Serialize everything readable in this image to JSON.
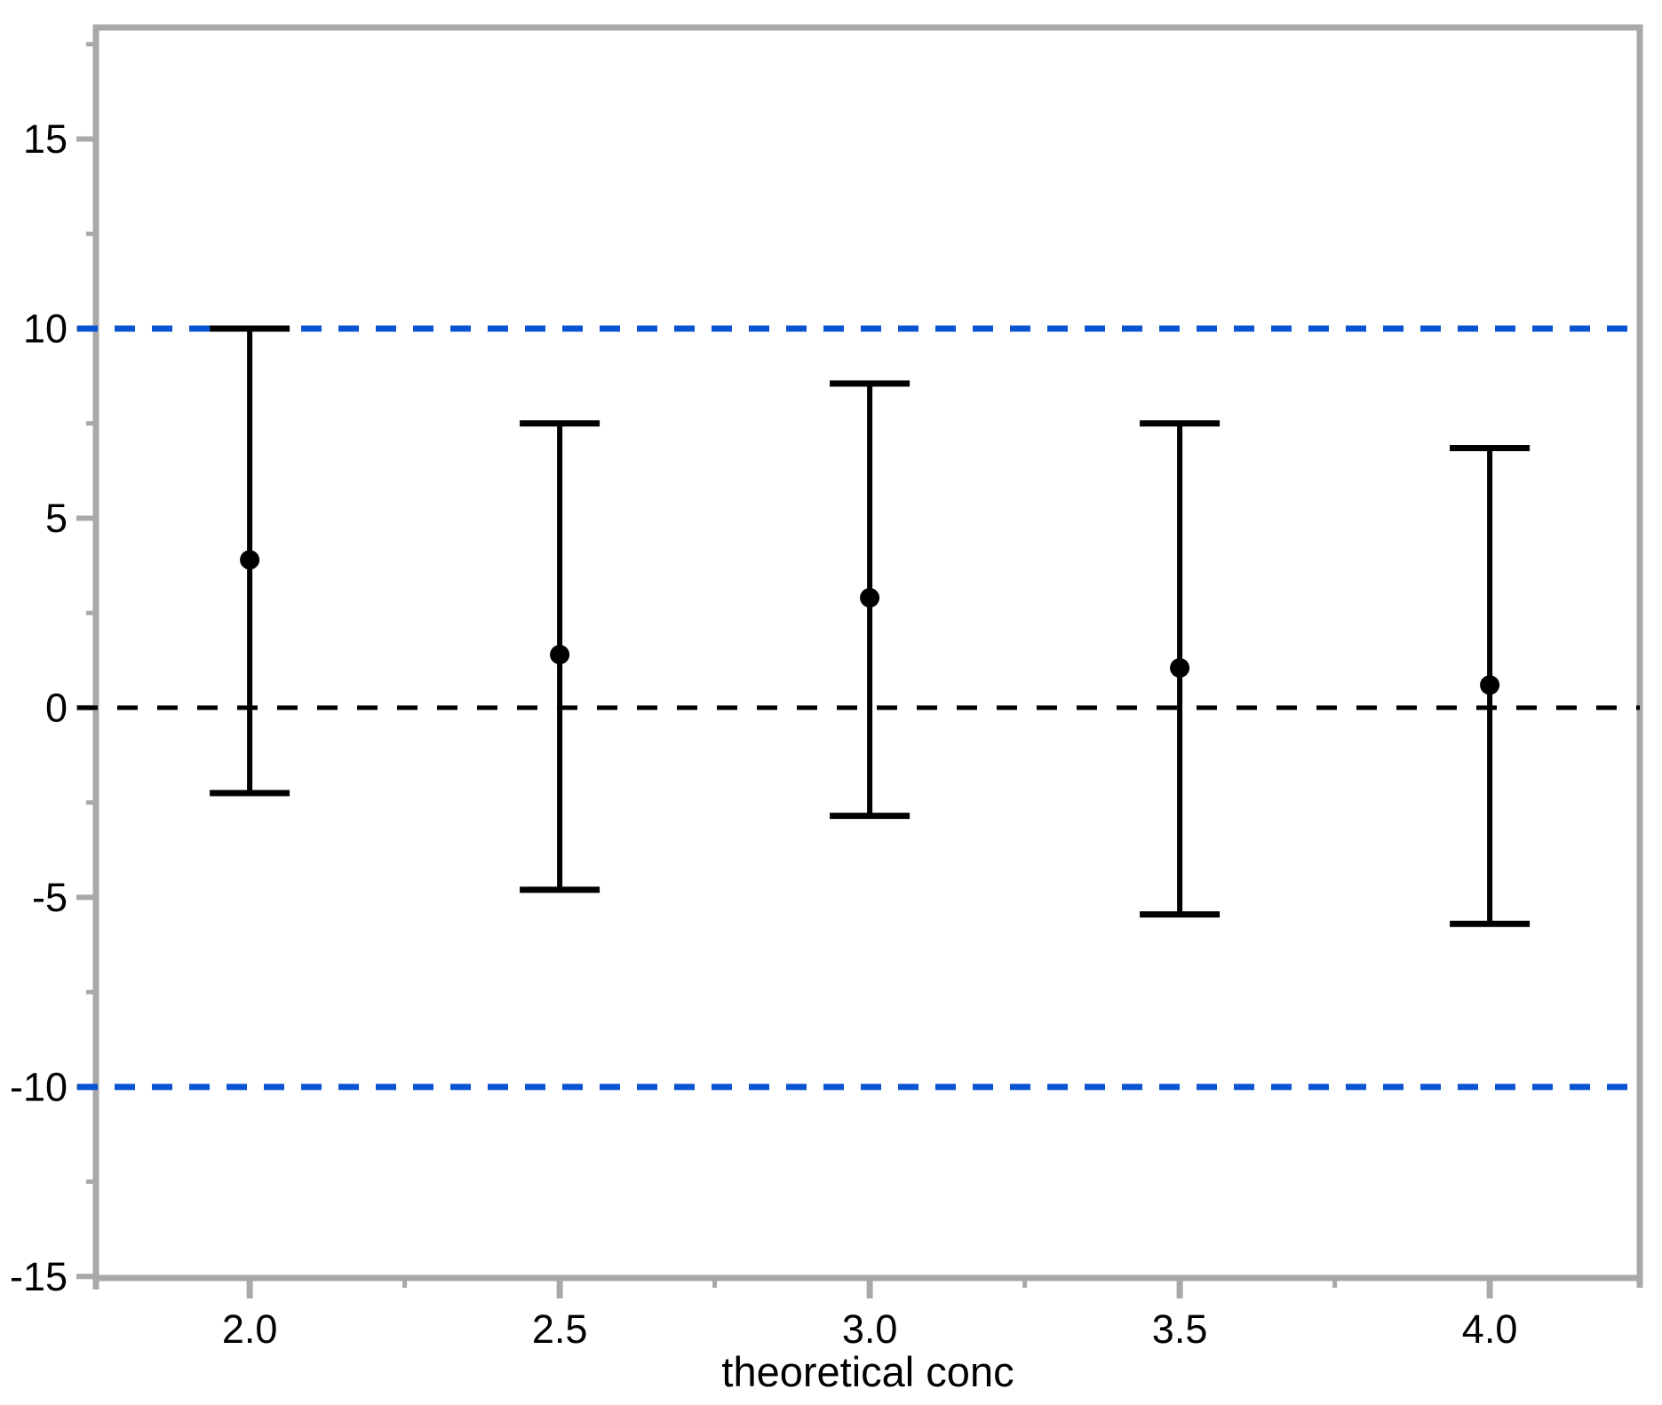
{
  "chart_data": {
    "type": "errorbar",
    "title": "",
    "xlabel": "theoretical conc",
    "ylabel": "",
    "x": [
      2.0,
      2.5,
      3.0,
      3.5,
      4.0
    ],
    "series": [
      {
        "points": [
          3.9,
          1.4,
          2.9,
          1.05,
          0.6
        ],
        "upper": [
          10.0,
          7.5,
          8.55,
          7.5,
          6.85
        ],
        "lower": [
          -2.25,
          -4.8,
          -2.85,
          -5.45,
          -5.7
        ]
      }
    ],
    "x_ticks": {
      "major": [
        2.0,
        2.5,
        3.0,
        3.5,
        4.0
      ],
      "labels": [
        "2.0",
        "2.5",
        "3.0",
        "3.5",
        "4.0"
      ],
      "minor": [
        2.25,
        2.75,
        3.25,
        3.75
      ]
    },
    "y_ticks": {
      "major": [
        -15,
        -10,
        -5,
        0,
        5,
        10,
        15
      ],
      "labels": [
        "-15",
        "-10",
        "-5",
        "0",
        "5",
        "10",
        "15"
      ],
      "minor": [
        -12.5,
        -7.5,
        -2.5,
        2.5,
        7.5,
        12.5,
        17.5
      ]
    },
    "xlim": [
      1.752,
      4.242
    ],
    "ylim": [
      -15.04,
      17.94
    ],
    "grid": false,
    "legend": null,
    "reference_lines": [
      {
        "y": 10,
        "color": "#0b54d1",
        "style": "dashed",
        "name": "upper-limit-line"
      },
      {
        "y": 0,
        "color": "#000000",
        "style": "dashed",
        "name": "zero-line"
      },
      {
        "y": -10,
        "color": "#0b54d1",
        "style": "dashed",
        "name": "lower-limit-line"
      }
    ],
    "colors": {
      "axis": "#a9a9a9",
      "series": "#000000",
      "text": "#000000",
      "background": "#ffffff"
    }
  }
}
